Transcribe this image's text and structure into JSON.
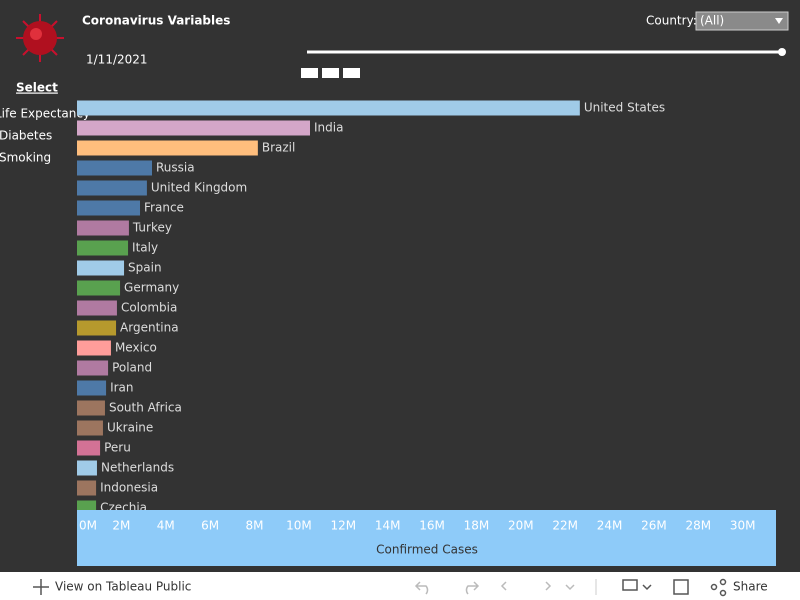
{
  "header": {
    "title": "Coronavirus Variables",
    "date": "1/11/2021",
    "filter_label": "Country:",
    "filter_value": "(All)"
  },
  "sidebar": {
    "heading": "Select",
    "items": [
      "Life Expectancy",
      "Diabetes",
      "Smoking"
    ]
  },
  "chart_data": {
    "type": "bar",
    "orientation": "horizontal",
    "x_label": "Confirmed Cases",
    "categories": [
      "United States",
      "India",
      "Brazil",
      "Russia",
      "United Kingdom",
      "France",
      "Turkey",
      "Italy",
      "Spain",
      "Germany",
      "Colombia",
      "Argentina",
      "Mexico",
      "Poland",
      "Iran",
      "South Africa",
      "Ukraine",
      "Peru",
      "Netherlands",
      "Indonesia",
      "Czechia"
    ],
    "values": [
      22660000,
      10500000,
      8150000,
      3380000,
      3150000,
      2840000,
      2340000,
      2300000,
      2120000,
      1940000,
      1800000,
      1760000,
      1530000,
      1400000,
      1310000,
      1260000,
      1170000,
      1040000,
      900000,
      860000,
      860000
    ],
    "colors": [
      "#a0cbe8",
      "#d4a6c8",
      "#ffbe7d",
      "#4e79a7",
      "#4e79a7",
      "#4e79a7",
      "#b07aa1",
      "#59a14f",
      "#a0cbe8",
      "#59a14f",
      "#b07aa1",
      "#b6992d",
      "#ff9d9a",
      "#b07aa1",
      "#4e79a7",
      "#9c755f",
      "#9c755f",
      "#d37295",
      "#a0cbe8",
      "#9c755f",
      "#59a14f"
    ],
    "xlim": [
      0,
      31500000
    ],
    "xticks": [
      {
        "value": 0,
        "label": "0M"
      },
      {
        "value": 2000000,
        "label": "2M"
      },
      {
        "value": 4000000,
        "label": "4M"
      },
      {
        "value": 6000000,
        "label": "6M"
      },
      {
        "value": 8000000,
        "label": "8M"
      },
      {
        "value": 10000000,
        "label": "10M"
      },
      {
        "value": 12000000,
        "label": "12M"
      },
      {
        "value": 14000000,
        "label": "14M"
      },
      {
        "value": 16000000,
        "label": "16M"
      },
      {
        "value": 18000000,
        "label": "18M"
      },
      {
        "value": 20000000,
        "label": "20M"
      },
      {
        "value": 22000000,
        "label": "22M"
      },
      {
        "value": 24000000,
        "label": "24M"
      },
      {
        "value": 26000000,
        "label": "26M"
      },
      {
        "value": 28000000,
        "label": "28M"
      },
      {
        "value": 30000000,
        "label": "30M"
      }
    ],
    "grid": false
  },
  "toolbar": {
    "view_link": "View on Tableau Public",
    "share": "Share"
  }
}
